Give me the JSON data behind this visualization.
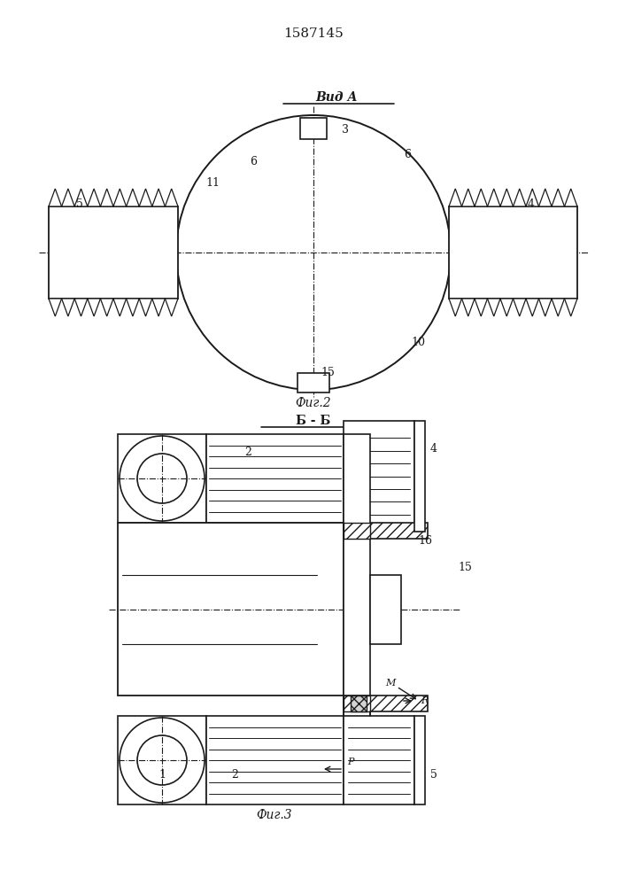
{
  "patent_number": "1587145",
  "bg_color": "#ffffff",
  "line_color": "#1a1a1a",
  "fig2_label": "Фиг.2",
  "fig3_label": "Фиг.3",
  "vid_a_label": "Вид А",
  "bb_label": "Б - Б"
}
